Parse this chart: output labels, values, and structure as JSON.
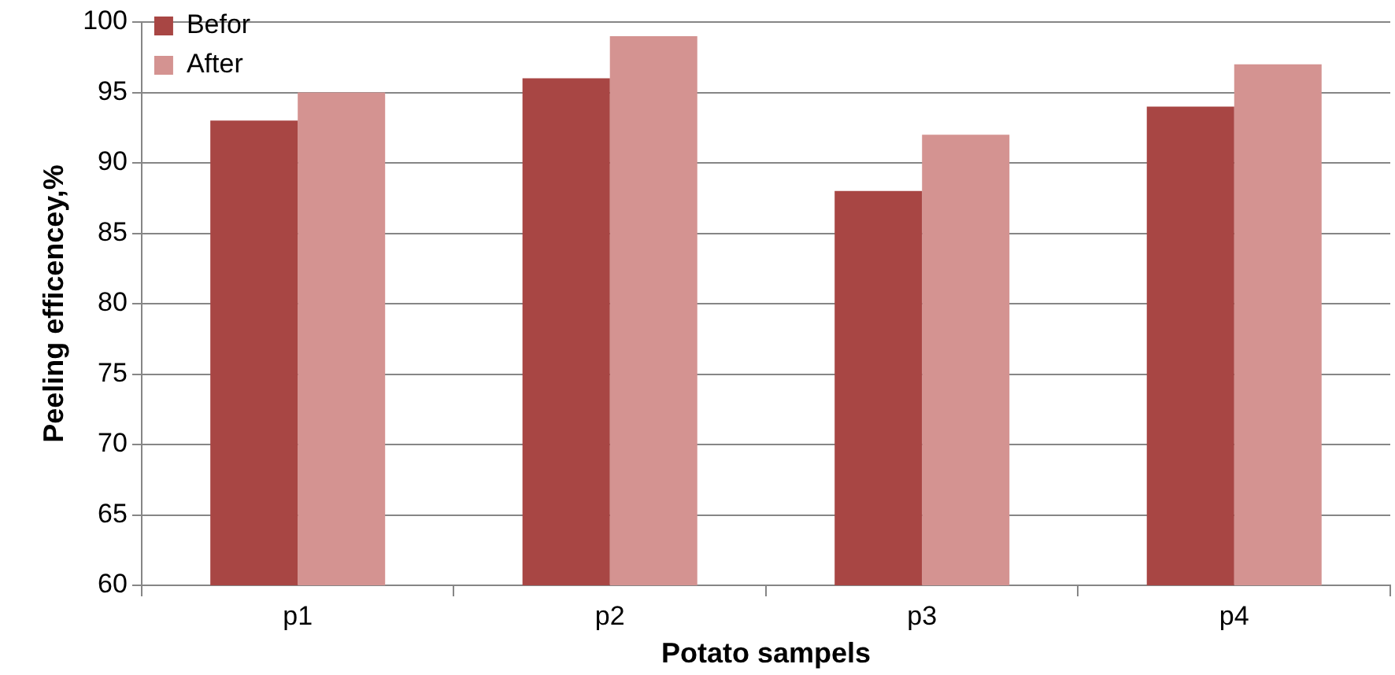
{
  "chart_data": {
    "type": "bar",
    "xlabel": "Potato sampels",
    "ylabel": "Peeling efficencey,%",
    "categories": [
      "p1",
      "p2",
      "p3",
      "p4"
    ],
    "series": [
      {
        "name": "Befor",
        "color": "#a84644",
        "values": [
          93,
          96,
          88,
          94
        ]
      },
      {
        "name": "After",
        "color": "#d49391",
        "values": [
          95,
          99,
          92,
          97
        ]
      }
    ],
    "ylim": [
      60,
      100
    ],
    "yticks": [
      60,
      65,
      70,
      75,
      80,
      85,
      90,
      95,
      100
    ],
    "grid": "y",
    "legend": "top"
  }
}
